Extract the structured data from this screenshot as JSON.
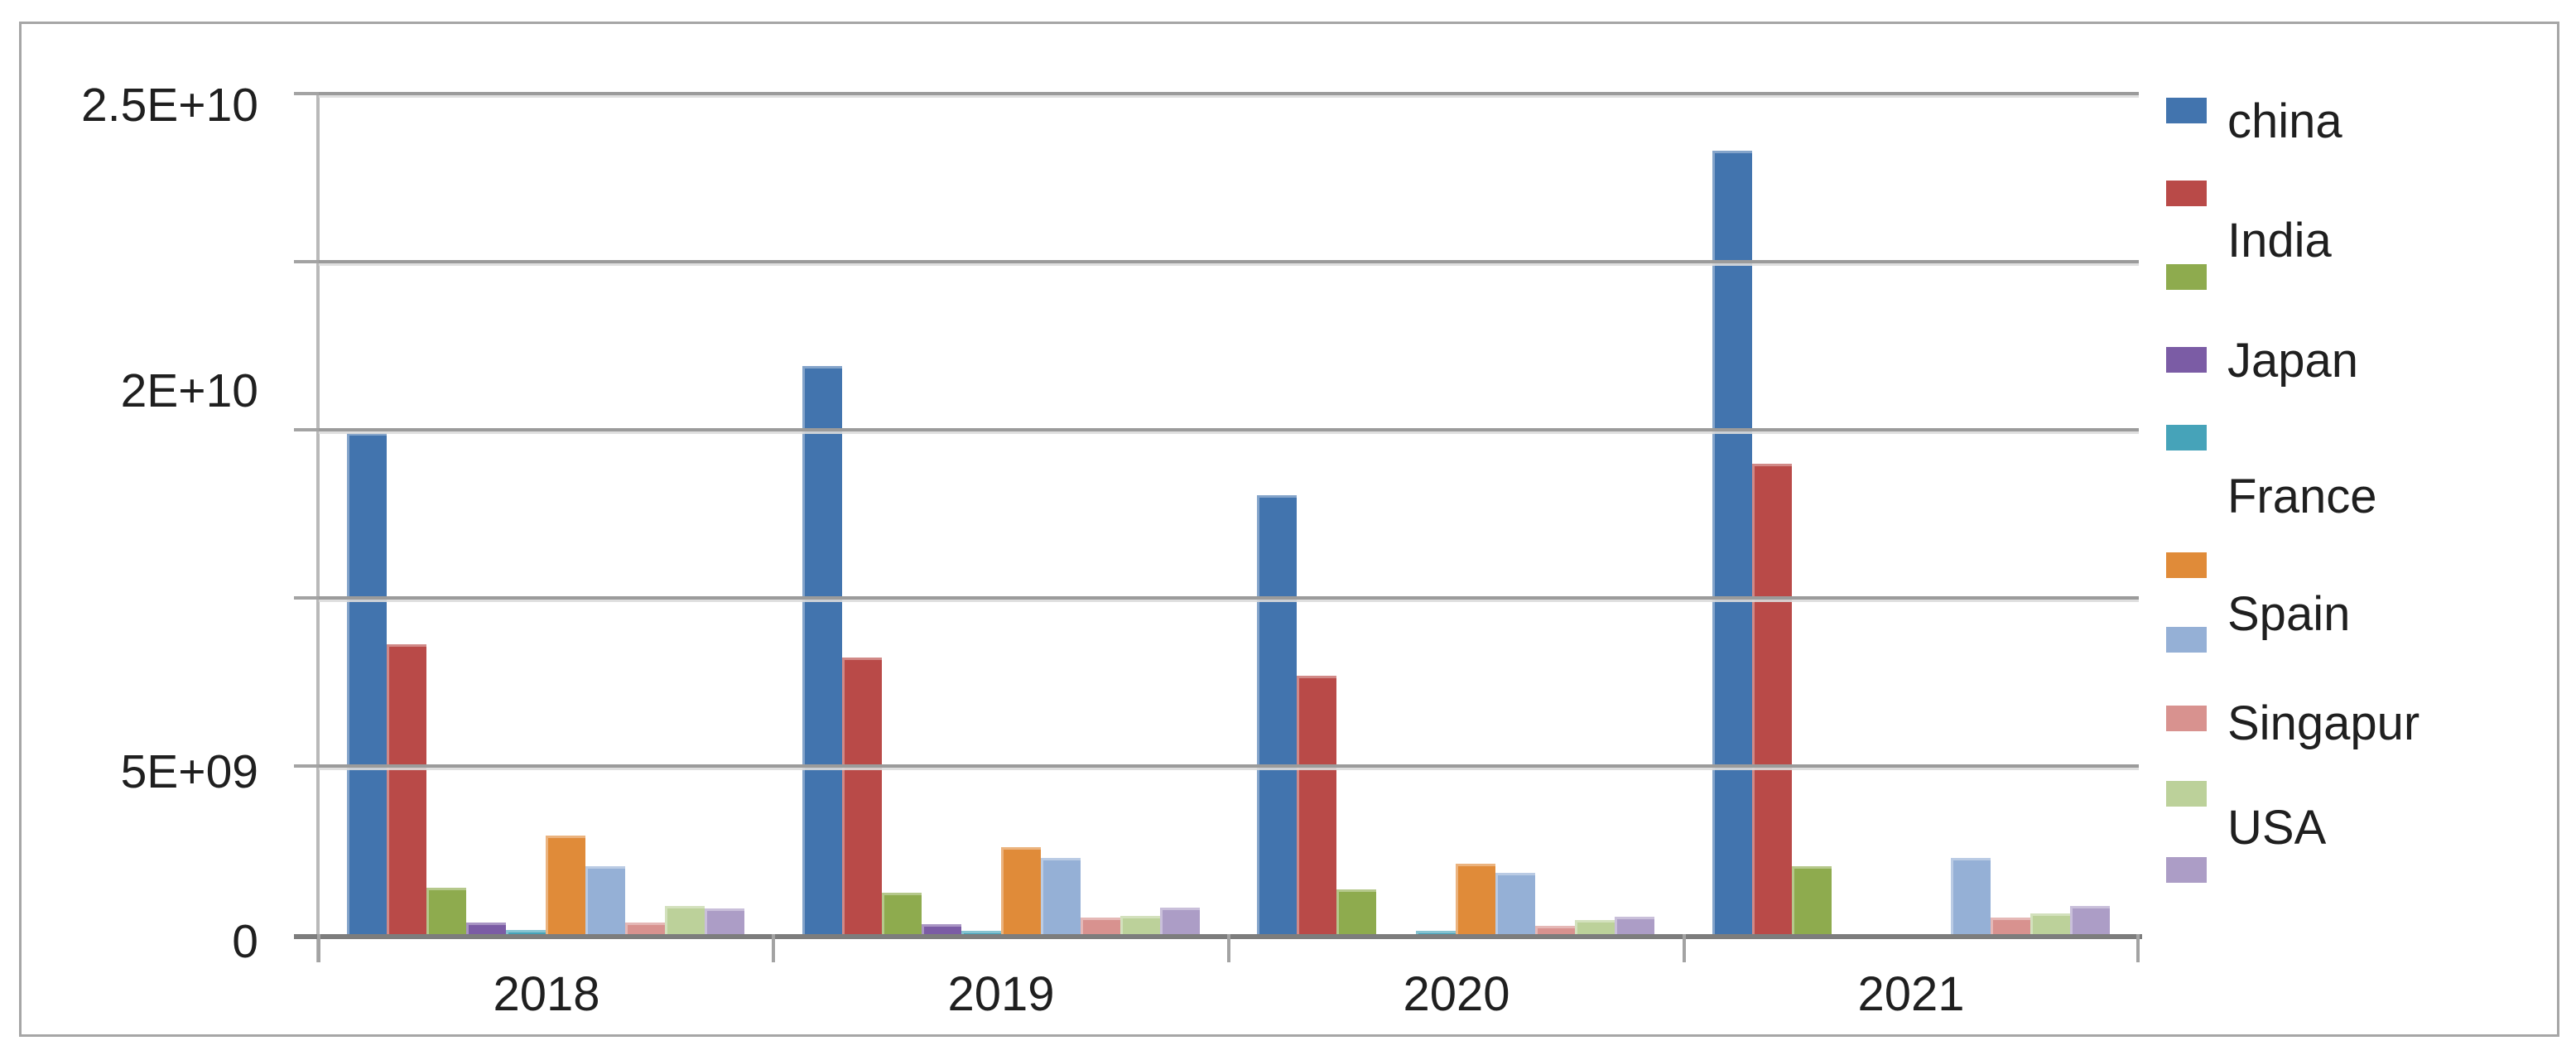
{
  "chart_data": {
    "type": "bar",
    "title": "",
    "xlabel": "",
    "ylabel": "",
    "categories": [
      "2018",
      "2019",
      "2020",
      "2021"
    ],
    "series": [
      {
        "name": "china",
        "color": "#4274AE",
        "values": [
          14900000000,
          16900000000,
          13050000000,
          23300000000
        ]
      },
      {
        "name": "India",
        "color": "#B94A48",
        "values": [
          8620000000,
          8230000000,
          7680000000,
          13990000000
        ]
      },
      {
        "name": "Japan",
        "color": "#8EAB4E",
        "values": [
          1380000000,
          1230000000,
          1330000000,
          2020000000
        ]
      },
      {
        "name": "France",
        "color": "#7B5CA5",
        "values": [
          350000000,
          300000000,
          0,
          0
        ]
      },
      {
        "name": "Spain",
        "color": "#46A3B9",
        "values": [
          130000000,
          100000000,
          100000000,
          0
        ]
      },
      {
        "name": "Singapur",
        "color": "#E08B39",
        "values": [
          2930000000,
          2590000000,
          2090000000,
          0
        ]
      },
      {
        "name": "USA",
        "color": "#95B0D6",
        "values": [
          2020000000,
          2270000000,
          1820000000,
          2270000000
        ]
      },
      {
        "name": "unlabeled-pink",
        "color": "#D8928F",
        "values": [
          340000000,
          490000000,
          250000000,
          490000000
        ]
      },
      {
        "name": "unlabeled-light-green",
        "color": "#BCD19A",
        "values": [
          840000000,
          540000000,
          420000000,
          620000000
        ]
      },
      {
        "name": "unlabeled-lavender",
        "color": "#AC9DC6",
        "values": [
          760000000,
          790000000,
          520000000,
          840000000
        ]
      }
    ],
    "legend_labels": [
      "china",
      "India",
      "Japan",
      "France",
      "Spain",
      "Singapur",
      "USA"
    ],
    "y_tick_labels": [
      "2.5E+10",
      "2E+10",
      "5E+09",
      "0"
    ],
    "ylim": [
      0,
      25000000000
    ],
    "gridline_step": 5000000000,
    "grid": true,
    "legend_position": "right"
  },
  "colors": {
    "gridline": "#9b9b9b",
    "axis": "#7d7d7d",
    "text": "#1f1f1f",
    "frame_border": "#a6a6a6",
    "background": "#ffffff"
  }
}
